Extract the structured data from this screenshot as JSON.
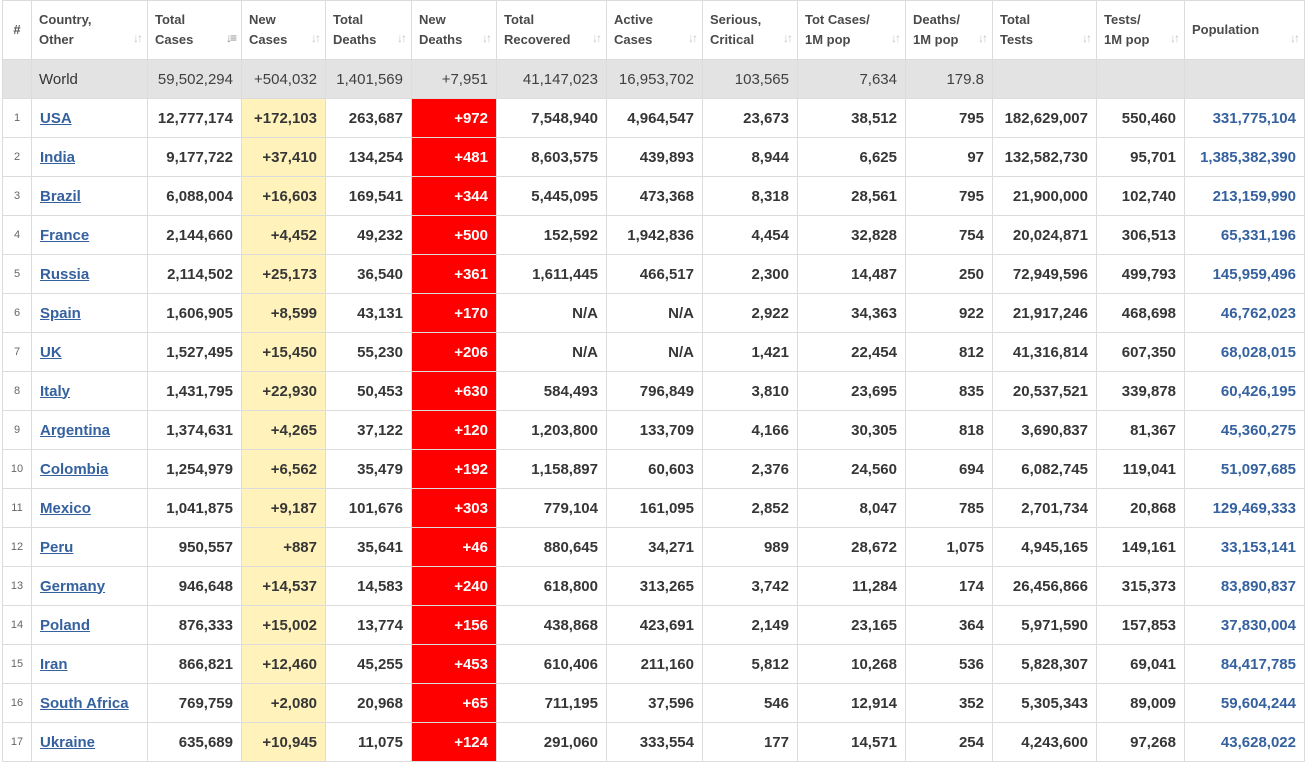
{
  "headers": [
    {
      "key": "num",
      "lines": [
        "#"
      ]
    },
    {
      "key": "country",
      "lines": [
        "Country,",
        "Other"
      ]
    },
    {
      "key": "total_cases",
      "lines": [
        "Total",
        "Cases"
      ]
    },
    {
      "key": "new_cases",
      "lines": [
        "New",
        "Cases"
      ]
    },
    {
      "key": "total_deaths",
      "lines": [
        "Total",
        "Deaths"
      ]
    },
    {
      "key": "new_deaths",
      "lines": [
        "New",
        "Deaths"
      ]
    },
    {
      "key": "total_recovered",
      "lines": [
        "Total",
        "Recovered"
      ]
    },
    {
      "key": "active_cases",
      "lines": [
        "Active",
        "Cases"
      ]
    },
    {
      "key": "serious_critical",
      "lines": [
        "Serious,",
        "Critical"
      ]
    },
    {
      "key": "tot_cases_1m",
      "lines": [
        "Tot Cases/",
        "1M pop"
      ]
    },
    {
      "key": "deaths_1m",
      "lines": [
        "Deaths/",
        "1M pop"
      ]
    },
    {
      "key": "total_tests",
      "lines": [
        "Total",
        "Tests"
      ]
    },
    {
      "key": "tests_1m",
      "lines": [
        "Tests/",
        "1M pop"
      ]
    },
    {
      "key": "population",
      "lines": [
        "Population"
      ]
    }
  ],
  "sort": {
    "active_column": "total_cases",
    "direction": "descending"
  },
  "colors": {
    "new_cases_bg": "#fff3bb",
    "new_deaths_bg": "#ff0000",
    "link": "#35619f",
    "world_row_bg": "#e3e3e3"
  },
  "world": {
    "country": "World",
    "total_cases": "59,502,294",
    "new_cases": "+504,032",
    "total_deaths": "1,401,569",
    "new_deaths": "+7,951",
    "total_recovered": "41,147,023",
    "active_cases": "16,953,702",
    "serious_critical": "103,565",
    "tot_cases_1m": "7,634",
    "deaths_1m": "179.8",
    "total_tests": "",
    "tests_1m": "",
    "population": ""
  },
  "rows": [
    {
      "num": "1",
      "country": "USA",
      "total_cases": "12,777,174",
      "new_cases": "+172,103",
      "total_deaths": "263,687",
      "new_deaths": "+972",
      "total_recovered": "7,548,940",
      "active_cases": "4,964,547",
      "serious_critical": "23,673",
      "tot_cases_1m": "38,512",
      "deaths_1m": "795",
      "total_tests": "182,629,007",
      "tests_1m": "550,460",
      "population": "331,775,104"
    },
    {
      "num": "2",
      "country": "India",
      "total_cases": "9,177,722",
      "new_cases": "+37,410",
      "total_deaths": "134,254",
      "new_deaths": "+481",
      "total_recovered": "8,603,575",
      "active_cases": "439,893",
      "serious_critical": "8,944",
      "tot_cases_1m": "6,625",
      "deaths_1m": "97",
      "total_tests": "132,582,730",
      "tests_1m": "95,701",
      "population": "1,385,382,390"
    },
    {
      "num": "3",
      "country": "Brazil",
      "total_cases": "6,088,004",
      "new_cases": "+16,603",
      "total_deaths": "169,541",
      "new_deaths": "+344",
      "total_recovered": "5,445,095",
      "active_cases": "473,368",
      "serious_critical": "8,318",
      "tot_cases_1m": "28,561",
      "deaths_1m": "795",
      "total_tests": "21,900,000",
      "tests_1m": "102,740",
      "population": "213,159,990"
    },
    {
      "num": "4",
      "country": "France",
      "total_cases": "2,144,660",
      "new_cases": "+4,452",
      "total_deaths": "49,232",
      "new_deaths": "+500",
      "total_recovered": "152,592",
      "active_cases": "1,942,836",
      "serious_critical": "4,454",
      "tot_cases_1m": "32,828",
      "deaths_1m": "754",
      "total_tests": "20,024,871",
      "tests_1m": "306,513",
      "population": "65,331,196"
    },
    {
      "num": "5",
      "country": "Russia",
      "total_cases": "2,114,502",
      "new_cases": "+25,173",
      "total_deaths": "36,540",
      "new_deaths": "+361",
      "total_recovered": "1,611,445",
      "active_cases": "466,517",
      "serious_critical": "2,300",
      "tot_cases_1m": "14,487",
      "deaths_1m": "250",
      "total_tests": "72,949,596",
      "tests_1m": "499,793",
      "population": "145,959,496"
    },
    {
      "num": "6",
      "country": "Spain",
      "total_cases": "1,606,905",
      "new_cases": "+8,599",
      "total_deaths": "43,131",
      "new_deaths": "+170",
      "total_recovered": "N/A",
      "active_cases": "N/A",
      "serious_critical": "2,922",
      "tot_cases_1m": "34,363",
      "deaths_1m": "922",
      "total_tests": "21,917,246",
      "tests_1m": "468,698",
      "population": "46,762,023"
    },
    {
      "num": "7",
      "country": "UK",
      "total_cases": "1,527,495",
      "new_cases": "+15,450",
      "total_deaths": "55,230",
      "new_deaths": "+206",
      "total_recovered": "N/A",
      "active_cases": "N/A",
      "serious_critical": "1,421",
      "tot_cases_1m": "22,454",
      "deaths_1m": "812",
      "total_tests": "41,316,814",
      "tests_1m": "607,350",
      "population": "68,028,015"
    },
    {
      "num": "8",
      "country": "Italy",
      "total_cases": "1,431,795",
      "new_cases": "+22,930",
      "total_deaths": "50,453",
      "new_deaths": "+630",
      "total_recovered": "584,493",
      "active_cases": "796,849",
      "serious_critical": "3,810",
      "tot_cases_1m": "23,695",
      "deaths_1m": "835",
      "total_tests": "20,537,521",
      "tests_1m": "339,878",
      "population": "60,426,195"
    },
    {
      "num": "9",
      "country": "Argentina",
      "total_cases": "1,374,631",
      "new_cases": "+4,265",
      "total_deaths": "37,122",
      "new_deaths": "+120",
      "total_recovered": "1,203,800",
      "active_cases": "133,709",
      "serious_critical": "4,166",
      "tot_cases_1m": "30,305",
      "deaths_1m": "818",
      "total_tests": "3,690,837",
      "tests_1m": "81,367",
      "population": "45,360,275"
    },
    {
      "num": "10",
      "country": "Colombia",
      "total_cases": "1,254,979",
      "new_cases": "+6,562",
      "total_deaths": "35,479",
      "new_deaths": "+192",
      "total_recovered": "1,158,897",
      "active_cases": "60,603",
      "serious_critical": "2,376",
      "tot_cases_1m": "24,560",
      "deaths_1m": "694",
      "total_tests": "6,082,745",
      "tests_1m": "119,041",
      "population": "51,097,685"
    },
    {
      "num": "11",
      "country": "Mexico",
      "total_cases": "1,041,875",
      "new_cases": "+9,187",
      "total_deaths": "101,676",
      "new_deaths": "+303",
      "total_recovered": "779,104",
      "active_cases": "161,095",
      "serious_critical": "2,852",
      "tot_cases_1m": "8,047",
      "deaths_1m": "785",
      "total_tests": "2,701,734",
      "tests_1m": "20,868",
      "population": "129,469,333"
    },
    {
      "num": "12",
      "country": "Peru",
      "total_cases": "950,557",
      "new_cases": "+887",
      "total_deaths": "35,641",
      "new_deaths": "+46",
      "total_recovered": "880,645",
      "active_cases": "34,271",
      "serious_critical": "989",
      "tot_cases_1m": "28,672",
      "deaths_1m": "1,075",
      "total_tests": "4,945,165",
      "tests_1m": "149,161",
      "population": "33,153,141"
    },
    {
      "num": "13",
      "country": "Germany",
      "total_cases": "946,648",
      "new_cases": "+14,537",
      "total_deaths": "14,583",
      "new_deaths": "+240",
      "total_recovered": "618,800",
      "active_cases": "313,265",
      "serious_critical": "3,742",
      "tot_cases_1m": "11,284",
      "deaths_1m": "174",
      "total_tests": "26,456,866",
      "tests_1m": "315,373",
      "population": "83,890,837"
    },
    {
      "num": "14",
      "country": "Poland",
      "total_cases": "876,333",
      "new_cases": "+15,002",
      "total_deaths": "13,774",
      "new_deaths": "+156",
      "total_recovered": "438,868",
      "active_cases": "423,691",
      "serious_critical": "2,149",
      "tot_cases_1m": "23,165",
      "deaths_1m": "364",
      "total_tests": "5,971,590",
      "tests_1m": "157,853",
      "population": "37,830,004"
    },
    {
      "num": "15",
      "country": "Iran",
      "total_cases": "866,821",
      "new_cases": "+12,460",
      "total_deaths": "45,255",
      "new_deaths": "+453",
      "total_recovered": "610,406",
      "active_cases": "211,160",
      "serious_critical": "5,812",
      "tot_cases_1m": "10,268",
      "deaths_1m": "536",
      "total_tests": "5,828,307",
      "tests_1m": "69,041",
      "population": "84,417,785"
    },
    {
      "num": "16",
      "country": "South Africa",
      "total_cases": "769,759",
      "new_cases": "+2,080",
      "total_deaths": "20,968",
      "new_deaths": "+65",
      "total_recovered": "711,195",
      "active_cases": "37,596",
      "serious_critical": "546",
      "tot_cases_1m": "12,914",
      "deaths_1m": "352",
      "total_tests": "5,305,343",
      "tests_1m": "89,009",
      "population": "59,604,244"
    },
    {
      "num": "17",
      "country": "Ukraine",
      "total_cases": "635,689",
      "new_cases": "+10,945",
      "total_deaths": "11,075",
      "new_deaths": "+124",
      "total_recovered": "291,060",
      "active_cases": "333,554",
      "serious_critical": "177",
      "tot_cases_1m": "14,571",
      "deaths_1m": "254",
      "total_tests": "4,243,600",
      "tests_1m": "97,268",
      "population": "43,628,022"
    }
  ]
}
